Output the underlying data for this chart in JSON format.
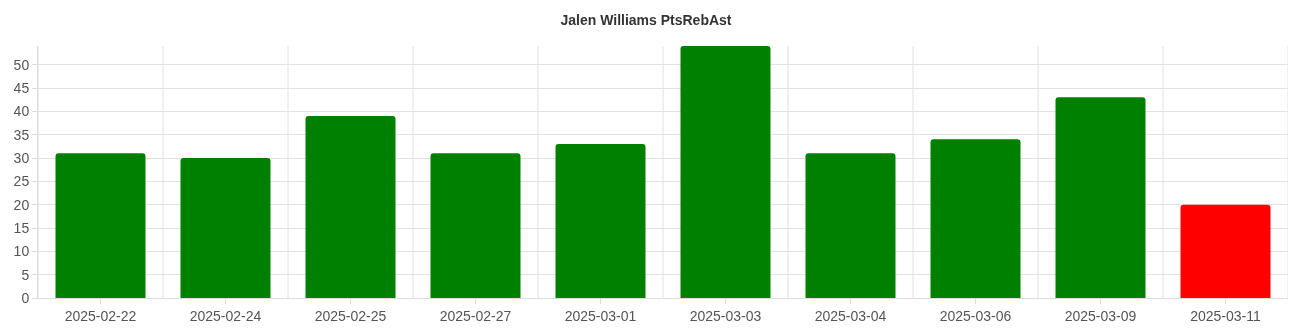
{
  "chart_data": {
    "type": "bar",
    "title": "Jalen Williams PtsRebAst",
    "categories": [
      "2025-02-22",
      "2025-02-24",
      "2025-02-25",
      "2025-02-27",
      "2025-03-01",
      "2025-03-03",
      "2025-03-04",
      "2025-03-06",
      "2025-03-09",
      "2025-03-11"
    ],
    "values": [
      31,
      30,
      39,
      31,
      33,
      54,
      31,
      34,
      43,
      20
    ],
    "colors": [
      "#008000",
      "#008000",
      "#008000",
      "#008000",
      "#008000",
      "#008000",
      "#008000",
      "#008000",
      "#008000",
      "#ff0000"
    ],
    "ylim": [
      0,
      54
    ],
    "yticks": [
      0,
      5,
      10,
      15,
      20,
      25,
      30,
      35,
      40,
      45,
      50
    ],
    "grid": true,
    "legend": false
  }
}
